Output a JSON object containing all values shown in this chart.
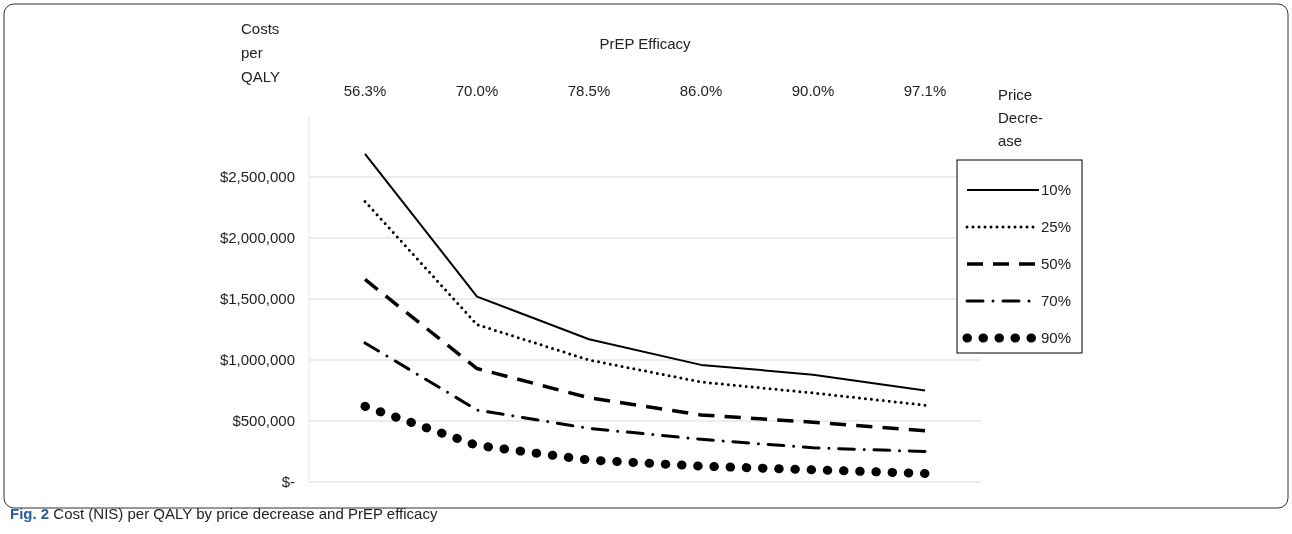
{
  "chart_data": {
    "type": "line",
    "xlabel": "PrEP Efficacy",
    "ylabel": "Costs per QALY",
    "legend_title": "Price Decre-ase",
    "categories": [
      "56.3%",
      "70.0%",
      "78.5%",
      "86.0%",
      "90.0%",
      "97.1%"
    ],
    "series": [
      {
        "name": "10%",
        "color": "#000000",
        "line_style": "solid",
        "values": [
          2690000,
          1520000,
          1170000,
          960000,
          880000,
          750000
        ]
      },
      {
        "name": "25%",
        "color": "#000000",
        "line_style": "dotted",
        "values": [
          2300000,
          1290000,
          1000000,
          820000,
          730000,
          630000
        ]
      },
      {
        "name": "50%",
        "color": "#000000",
        "line_style": "dashed",
        "values": [
          1660000,
          930000,
          690000,
          550000,
          490000,
          420000
        ]
      },
      {
        "name": "70%",
        "color": "#000000",
        "line_style": "dashdot",
        "values": [
          1140000,
          590000,
          440000,
          350000,
          280000,
          250000
        ]
      },
      {
        "name": "90%",
        "color": "#000000",
        "line_style": "round-dotted",
        "values": [
          620000,
          300000,
          180000,
          130000,
          100000,
          70000
        ]
      }
    ],
    "ylim": [
      0,
      3000000
    ],
    "yticks": [
      {
        "value": 0,
        "label": "$-"
      },
      {
        "value": 500000,
        "label": "$500,000"
      },
      {
        "value": 1000000,
        "label": "$1,000,000"
      },
      {
        "value": 1500000,
        "label": "$1,500,000"
      },
      {
        "value": 2000000,
        "label": "$2,000,000"
      },
      {
        "value": 2500000,
        "label": "$2,500,000"
      }
    ],
    "grid": "y",
    "legend": "right",
    "marker": "none",
    "annotations": [
      "Fig. 2 Cost (NIS) per QALY by price decrease and PrEP efficacy"
    ]
  }
}
